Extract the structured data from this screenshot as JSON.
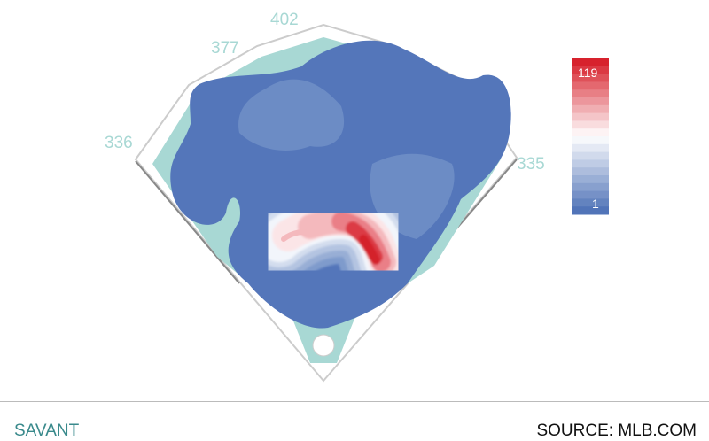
{
  "chart_data": {
    "type": "heatmap",
    "title": "",
    "field_distances": [
      {
        "label": "336"
      },
      {
        "label": "377"
      },
      {
        "label": "402"
      },
      {
        "label": "335"
      }
    ],
    "legend": {
      "max_label": "119",
      "min_label": "1",
      "min": 1,
      "max": 119,
      "placement": "right"
    },
    "colors": {
      "low": "#5174b8",
      "mid": "#ffffff",
      "high": "#d7222d",
      "grass": "#a8d8d4"
    }
  },
  "footer": {
    "brand": "SAVANT",
    "source": "SOURCE: MLB.COM"
  }
}
